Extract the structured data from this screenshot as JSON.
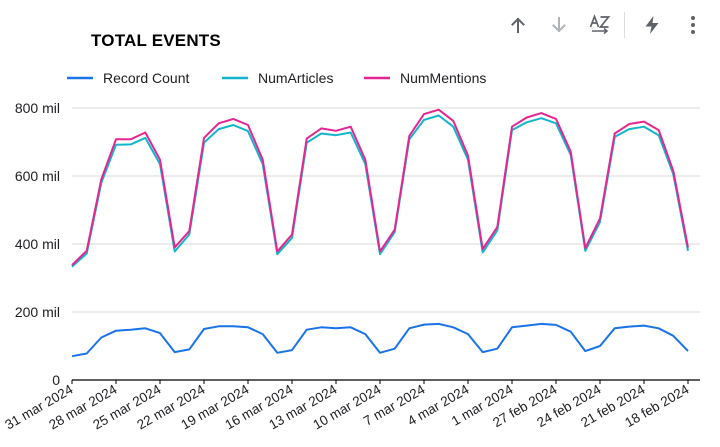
{
  "title": "TOTAL EVENTS",
  "toolbar": {
    "sort_asc_icon": "arrow-up-icon",
    "sort_desc_icon": "arrow-down-icon",
    "sort_alpha_icon": "az-sort-icon",
    "insights_icon": "lightning-icon",
    "more_icon": "vertical-ellipsis-icon"
  },
  "colors": {
    "record_count": "#1a73e8",
    "num_articles": "#12b5cb",
    "num_mentions": "#e52592",
    "grid": "#d9d9d9",
    "axis": "#000000"
  },
  "chart_data": {
    "type": "line",
    "title": "TOTAL EVENTS",
    "legend_position": "top",
    "grid": true,
    "ylim": [
      0,
      800000
    ],
    "yticks": [
      0,
      200000,
      400000,
      600000,
      800000
    ],
    "ytick_labels": [
      "0",
      "200 mil",
      "400 mil",
      "600 mil",
      "800 mil"
    ],
    "xtick_labels": [
      "31 mar 2024",
      "28 mar 2024",
      "25 mar 2024",
      "22 mar 2024",
      "19 mar 2024",
      "16 mar 2024",
      "13 mar 2024",
      "10 mar 2024",
      "7 mar 2024",
      "4 mar 2024",
      "1 mar 2024",
      "27 feb 2024",
      "24 feb 2024",
      "21 feb 2024",
      "18 feb 2024"
    ],
    "xtick_every": 3,
    "series": [
      {
        "name": "Record Count",
        "color": "#1a73e8",
        "values": [
          70000,
          78000,
          125000,
          145000,
          148000,
          152000,
          138000,
          82000,
          90000,
          150000,
          158000,
          158000,
          155000,
          135000,
          80000,
          88000,
          148000,
          155000,
          152000,
          155000,
          135000,
          80000,
          92000,
          152000,
          163000,
          165000,
          155000,
          135000,
          82000,
          92000,
          155000,
          160000,
          165000,
          162000,
          142000,
          85000,
          100000,
          152000,
          157000,
          160000,
          152000,
          130000,
          85000
        ]
      },
      {
        "name": "NumArticles",
        "color": "#12b5cb",
        "values": [
          333000,
          372000,
          580000,
          692000,
          693000,
          712000,
          635000,
          378000,
          428000,
          698000,
          738000,
          750000,
          732000,
          635000,
          370000,
          418000,
          698000,
          725000,
          720000,
          728000,
          635000,
          370000,
          435000,
          708000,
          765000,
          778000,
          745000,
          648000,
          375000,
          440000,
          735000,
          758000,
          770000,
          755000,
          662000,
          380000,
          465000,
          715000,
          738000,
          745000,
          720000,
          605000,
          380000
        ]
      },
      {
        "name": "NumMentions",
        "color": "#e52592",
        "values": [
          338000,
          380000,
          590000,
          708000,
          708000,
          728000,
          648000,
          390000,
          438000,
          712000,
          755000,
          768000,
          750000,
          648000,
          378000,
          428000,
          710000,
          740000,
          733000,
          745000,
          648000,
          378000,
          442000,
          718000,
          782000,
          795000,
          762000,
          660000,
          385000,
          450000,
          745000,
          772000,
          785000,
          768000,
          672000,
          388000,
          475000,
          725000,
          753000,
          760000,
          735000,
          615000,
          390000
        ]
      }
    ]
  }
}
